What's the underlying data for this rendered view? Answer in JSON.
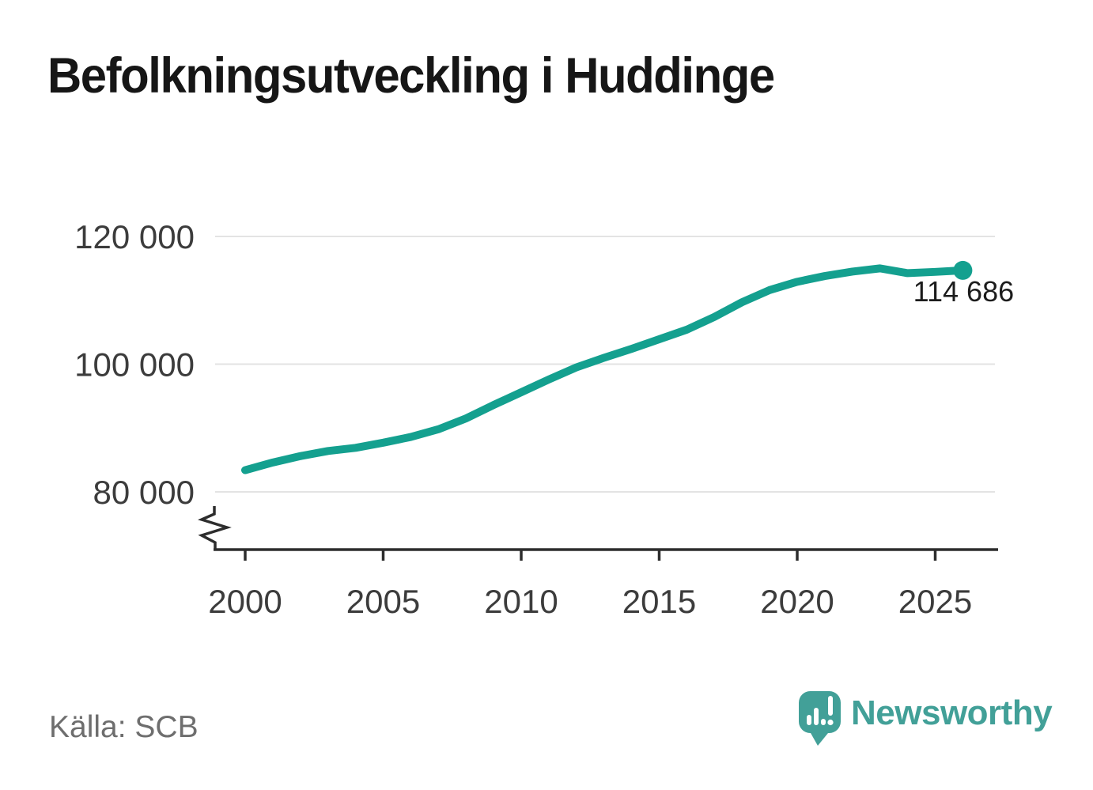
{
  "title": "Befolkningsutveckling i Huddinge",
  "source": "Källa: SCB",
  "branding": {
    "name": "Newsworthy",
    "icon": "newsworthy-speech-bubble-bar-chart-icon",
    "color": "#42a098"
  },
  "colors": {
    "line": "#14a08f",
    "marker": "#14a08f",
    "grid": "#e3e3e3",
    "axis": "#2d2d2d",
    "tick_label": "#3c3c3c",
    "annotation": "#1c1c1c"
  },
  "chart_data": {
    "type": "line",
    "title": "Befolkningsutveckling i Huddinge",
    "x": [
      2000,
      2001,
      2002,
      2003,
      2004,
      2005,
      2006,
      2007,
      2008,
      2009,
      2010,
      2011,
      2012,
      2013,
      2014,
      2015,
      2016,
      2017,
      2018,
      2019,
      2020,
      2021,
      2022,
      2023,
      2024,
      2025,
      2026
    ],
    "y": [
      83400,
      84600,
      85600,
      86400,
      86900,
      87700,
      88600,
      89800,
      91500,
      93600,
      95600,
      97600,
      99500,
      101000,
      102400,
      103900,
      105400,
      107400,
      109700,
      111600,
      112900,
      113800,
      114500,
      115000,
      114250,
      114450,
      114686
    ],
    "end_value": 114686,
    "end_label": "114 686",
    "xticks": [
      2000,
      2005,
      2010,
      2015,
      2020,
      2025
    ],
    "yticks": [
      {
        "value": 80000,
        "label": "80 000"
      },
      {
        "value": 100000,
        "label": "100 000"
      },
      {
        "value": 120000,
        "label": "120 000"
      }
    ],
    "xlim": [
      1998.9,
      2027.3
    ],
    "ylim": [
      78000,
      122800
    ],
    "grid": "horizontal-only",
    "axis_break": true,
    "legend": "none",
    "source": "Källa: SCB"
  }
}
